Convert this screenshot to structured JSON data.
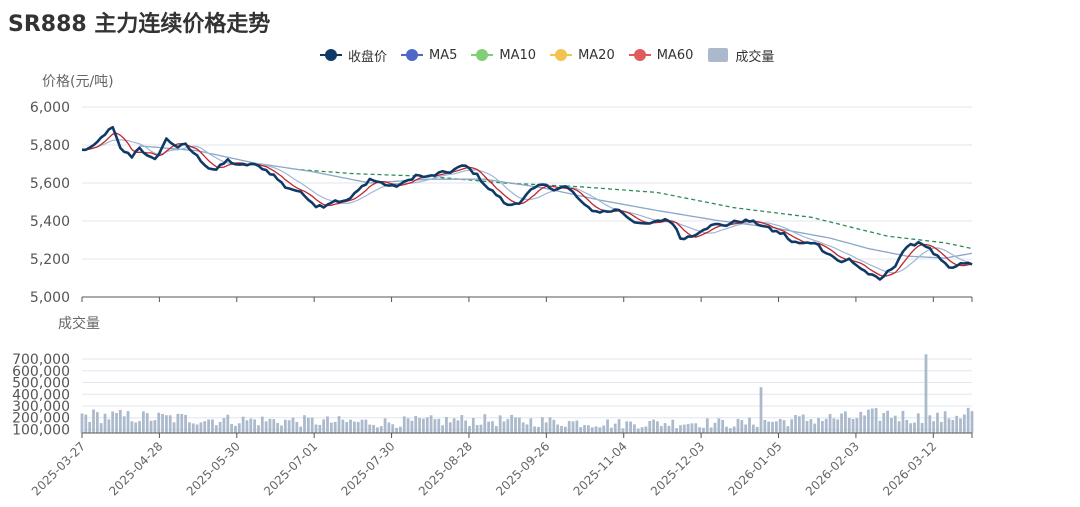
{
  "colors": {
    "close": "#0f3a66",
    "ma5": "#4f67c9",
    "ma10": "#7fcf77",
    "ma20": "#f4c24f",
    "ma60": "#e05b5b",
    "volume": "#aab9cc",
    "grid": "#e2e6ee",
    "ma20_line": "#8aa7c8",
    "ma60_line": "#2e8b57"
  },
  "chart_data": {
    "type": "line",
    "title": "SR888 主力连续价格走势",
    "legend": [
      "收盘价",
      "MA5",
      "MA10",
      "MA20",
      "MA60",
      "成交量"
    ],
    "price_panel": {
      "ylabel": "价格(元/吨)",
      "ylim": [
        5000,
        6000
      ],
      "yticks": [
        5000,
        5200,
        5400,
        5600,
        5800,
        6000
      ],
      "ytick_labels": [
        "5,000",
        "5,200",
        "5,400",
        "5,600",
        "5,800",
        "6,000"
      ]
    },
    "volume_panel": {
      "ylabel": "成交量",
      "ylim": [
        70000,
        760000
      ],
      "yticks": [
        100000,
        200000,
        300000,
        400000,
        500000,
        600000,
        700000
      ],
      "ytick_labels": [
        "100,000",
        "200,000",
        "300,000",
        "400,000",
        "500,000",
        "600,000",
        "700,000"
      ]
    },
    "x_tick_labels": [
      "2025-03-27",
      "2025-04-28",
      "2025-05-30",
      "2025-07-01",
      "2025-07-30",
      "2025-08-28",
      "2025-09-26",
      "2025-11-04",
      "2025-12-03",
      "2026-01-05",
      "2026-02-03",
      "2026-03-12"
    ],
    "n_days": 233,
    "close_keypoints": [
      [
        0,
        5772
      ],
      [
        3,
        5790
      ],
      [
        6,
        5860
      ],
      [
        8,
        5890
      ],
      [
        10,
        5780
      ],
      [
        13,
        5740
      ],
      [
        15,
        5790
      ],
      [
        17,
        5740
      ],
      [
        19,
        5720
      ],
      [
        22,
        5830
      ],
      [
        25,
        5790
      ],
      [
        27,
        5800
      ],
      [
        30,
        5740
      ],
      [
        33,
        5680
      ],
      [
        35,
        5670
      ],
      [
        38,
        5720
      ],
      [
        41,
        5690
      ],
      [
        44,
        5700
      ],
      [
        47,
        5680
      ],
      [
        50,
        5640
      ],
      [
        53,
        5580
      ],
      [
        56,
        5560
      ],
      [
        59,
        5520
      ],
      [
        61,
        5480
      ],
      [
        63,
        5480
      ],
      [
        66,
        5510
      ],
      [
        68,
        5500
      ],
      [
        70,
        5520
      ],
      [
        72,
        5560
      ],
      [
        75,
        5620
      ],
      [
        78,
        5600
      ],
      [
        81,
        5580
      ],
      [
        84,
        5600
      ],
      [
        87,
        5640
      ],
      [
        90,
        5630
      ],
      [
        93,
        5650
      ],
      [
        96,
        5660
      ],
      [
        98,
        5680
      ],
      [
        100,
        5690
      ],
      [
        103,
        5640
      ],
      [
        106,
        5570
      ],
      [
        108,
        5540
      ],
      [
        111,
        5480
      ],
      [
        114,
        5500
      ],
      [
        117,
        5560
      ],
      [
        120,
        5590
      ],
      [
        123,
        5570
      ],
      [
        126,
        5580
      ],
      [
        128,
        5550
      ],
      [
        131,
        5480
      ],
      [
        134,
        5450
      ],
      [
        137,
        5450
      ],
      [
        140,
        5460
      ],
      [
        143,
        5410
      ],
      [
        146,
        5380
      ],
      [
        149,
        5390
      ],
      [
        152,
        5410
      ],
      [
        154,
        5390
      ],
      [
        156,
        5310
      ],
      [
        159,
        5320
      ],
      [
        162,
        5360
      ],
      [
        165,
        5380
      ],
      [
        168,
        5380
      ],
      [
        171,
        5400
      ],
      [
        174,
        5400
      ],
      [
        177,
        5380
      ],
      [
        180,
        5350
      ],
      [
        183,
        5330
      ],
      [
        185,
        5290
      ],
      [
        188,
        5280
      ],
      [
        191,
        5290
      ],
      [
        193,
        5250
      ],
      [
        196,
        5210
      ],
      [
        198,
        5180
      ],
      [
        200,
        5200
      ],
      [
        203,
        5150
      ],
      [
        206,
        5110
      ],
      [
        208,
        5090
      ],
      [
        210,
        5130
      ],
      [
        212,
        5170
      ],
      [
        214,
        5240
      ],
      [
        216,
        5270
      ],
      [
        218,
        5290
      ],
      [
        220,
        5270
      ],
      [
        222,
        5230
      ],
      [
        224,
        5190
      ],
      [
        226,
        5150
      ],
      [
        228,
        5160
      ],
      [
        230,
        5180
      ],
      [
        232,
        5170
      ]
    ],
    "ma20_keypoints": [
      [
        15,
        5795
      ],
      [
        30,
        5770
      ],
      [
        45,
        5705
      ],
      [
        60,
        5660
      ],
      [
        75,
        5600
      ],
      [
        90,
        5620
      ],
      [
        105,
        5620
      ],
      [
        120,
        5575
      ],
      [
        135,
        5510
      ],
      [
        150,
        5455
      ],
      [
        165,
        5405
      ],
      [
        180,
        5365
      ],
      [
        195,
        5310
      ],
      [
        205,
        5255
      ],
      [
        215,
        5215
      ],
      [
        225,
        5205
      ],
      [
        232,
        5230
      ]
    ],
    "ma60_keypoints": [
      [
        57,
        5670
      ],
      [
        70,
        5650
      ],
      [
        90,
        5635
      ],
      [
        110,
        5600
      ],
      [
        130,
        5580
      ],
      [
        150,
        5550
      ],
      [
        170,
        5470
      ],
      [
        190,
        5420
      ],
      [
        210,
        5320
      ],
      [
        225,
        5285
      ],
      [
        232,
        5255
      ]
    ],
    "volume_keypoints": [
      [
        0,
        220000
      ],
      [
        10,
        210000
      ],
      [
        20,
        200000
      ],
      [
        30,
        190000
      ],
      [
        40,
        180000
      ],
      [
        60,
        170000
      ],
      [
        80,
        160000
      ],
      [
        100,
        180000
      ],
      [
        120,
        170000
      ],
      [
        140,
        150000
      ],
      [
        160,
        160000
      ],
      [
        170,
        150000
      ],
      [
        180,
        170000
      ],
      [
        190,
        190000
      ],
      [
        200,
        200000
      ],
      [
        210,
        230000
      ],
      [
        220,
        190000
      ],
      [
        225,
        200000
      ],
      [
        232,
        260000
      ]
    ]
  }
}
